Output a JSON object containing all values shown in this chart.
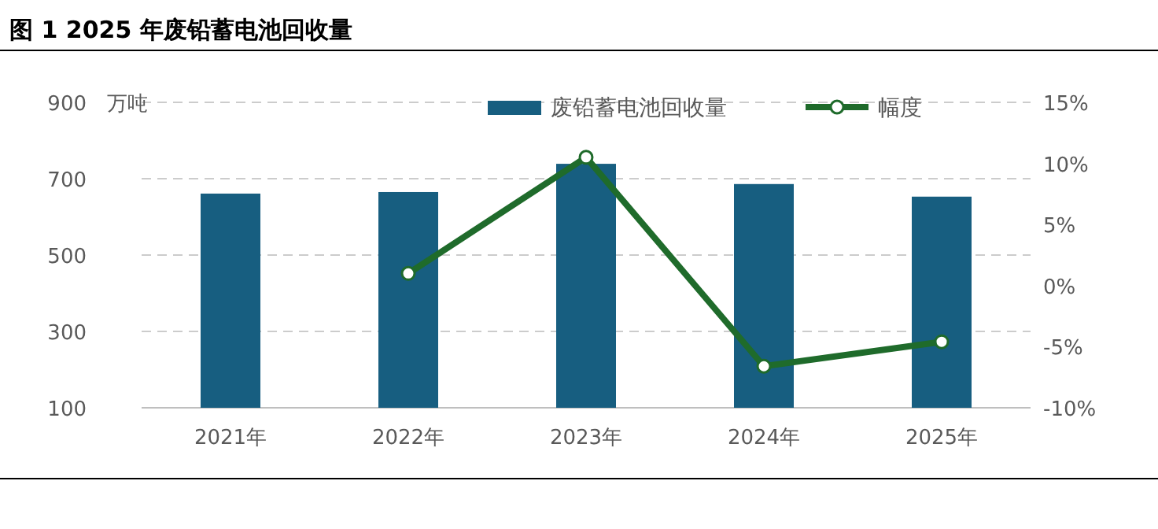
{
  "chart_data": {
    "type": "bar",
    "title": "图 1 2025 年废铅蓄电池回收量",
    "ylabel": "万吨",
    "categories": [
      "2021年",
      "2022年",
      "2023年",
      "2024年",
      "2025年"
    ],
    "series": [
      {
        "name": "废铅蓄电池回收量",
        "color": "#175e80",
        "values": [
          661,
          665,
          739,
          686,
          653
        ]
      },
      {
        "name": "幅度",
        "type": "line",
        "axis": "y2",
        "color": "#1f6b2b",
        "marker": "circle",
        "values": [
          null,
          1.0,
          10.5,
          -6.6,
          -4.6
        ]
      }
    ],
    "ylim": [
      100,
      900
    ],
    "yticks": [
      100,
      300,
      500,
      700,
      900
    ],
    "y2lim": [
      -10,
      15
    ],
    "y2ticks": [
      {
        "value": -10,
        "label": "-10%"
      },
      {
        "value": -5,
        "label": "-5%"
      },
      {
        "value": 0,
        "label": "0%"
      },
      {
        "value": 5,
        "label": "5%"
      },
      {
        "value": 10,
        "label": "10%"
      },
      {
        "value": 15,
        "label": "15%"
      }
    ],
    "grid": "y",
    "legend": "top"
  }
}
